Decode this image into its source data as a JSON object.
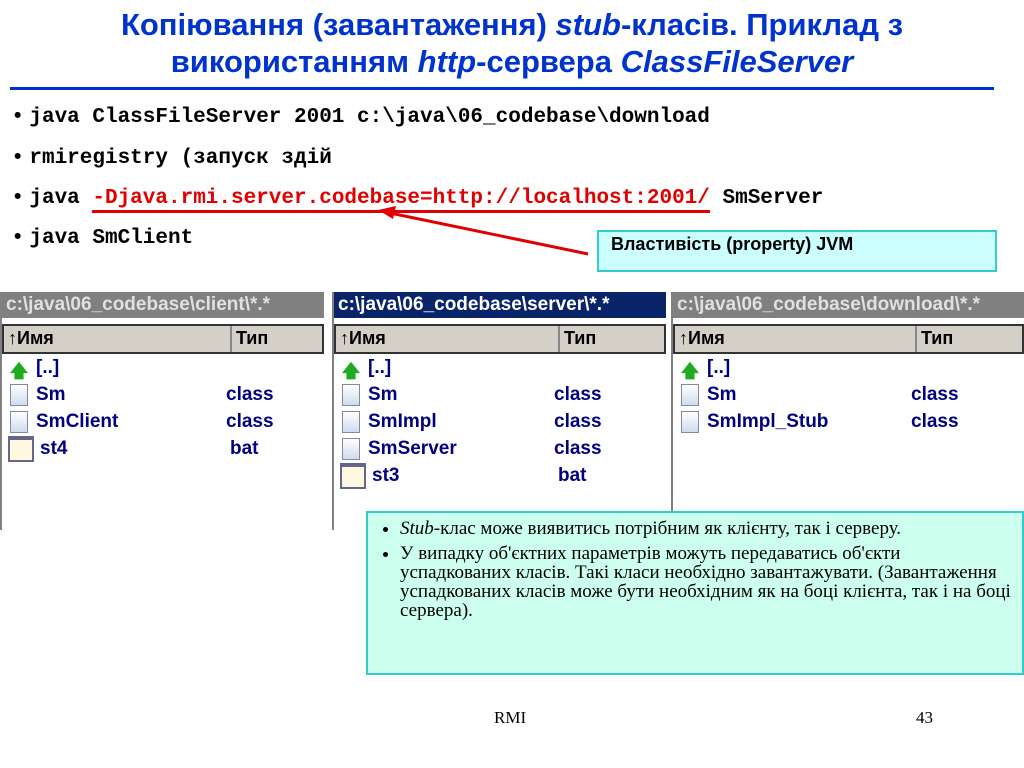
{
  "title": {
    "part1": "Копіювання (завантаження) ",
    "stub": "stub",
    "part2": "-класів. Приклад з",
    "part3": "використанням ",
    "http": "http",
    "part4": "-сервера ",
    "cfs": "ClassFileServer"
  },
  "commands": [
    {
      "bullet": "•",
      "text": "java ClassFileServer 2001 c:\\java\\06_codebase\\download"
    },
    {
      "bullet": "•",
      "text": "rmiregistry (запуск здій"
    },
    {
      "bullet": "•",
      "pre": "java ",
      "highlight": "-Djava.rmi.server.codebase=http://localhost:2001/",
      "post": " SmServer"
    },
    {
      "bullet": "•",
      "text": "java SmClient"
    }
  ],
  "callout": "Властивість (property) JVM",
  "panels": [
    {
      "path": "c:\\java\\06_codebase\\client\\*.*",
      "active": false,
      "col_name": "↑Имя",
      "col_type": "Тип",
      "rows": [
        {
          "icon": "up",
          "name": "[..]",
          "type": ""
        },
        {
          "icon": "file",
          "name": "Sm",
          "type": "class"
        },
        {
          "icon": "file",
          "name": "SmClient",
          "type": "class"
        },
        {
          "icon": "bat",
          "name": "st4",
          "type": "bat"
        }
      ]
    },
    {
      "path": "c:\\java\\06_codebase\\server\\*.*",
      "active": true,
      "col_name": "↑Имя",
      "col_type": "Тип",
      "rows": [
        {
          "icon": "up",
          "name": "[..]",
          "type": ""
        },
        {
          "icon": "file",
          "name": "Sm",
          "type": "class"
        },
        {
          "icon": "file",
          "name": "SmImpl",
          "type": "class"
        },
        {
          "icon": "file",
          "name": "SmServer",
          "type": "class"
        },
        {
          "icon": "bat",
          "name": "st3",
          "type": "bat"
        }
      ]
    },
    {
      "path": "c:\\java\\06_codebase\\download\\*.*",
      "active": false,
      "col_name": "↑Имя",
      "col_type": "Тип",
      "rows": [
        {
          "icon": "up",
          "name": "[..]",
          "type": ""
        },
        {
          "icon": "file",
          "name": "Sm",
          "type": "class"
        },
        {
          "icon": "file",
          "name": "SmImpl_Stub",
          "type": "class"
        }
      ]
    }
  ],
  "notes": [
    {
      "em": "Stub",
      "text": "-клас може виявитись потрібним як клієнту, так і серверу."
    },
    {
      "em": "",
      "text": "У випадку об'єктних параметрів можуть передаватись об'єкти успадкованих класів. Такі класи необхідно завантажувати. (Завантаження успадкованих класів може бути необхідним як на боці клієнта, так і на боці сервера)."
    }
  ],
  "footer": {
    "center": "RMI",
    "page": "43"
  },
  "colors": {
    "title": "#0033cc",
    "highlight": "#e00000",
    "active_title": "#0a246a",
    "inactive_title": "#808080"
  }
}
